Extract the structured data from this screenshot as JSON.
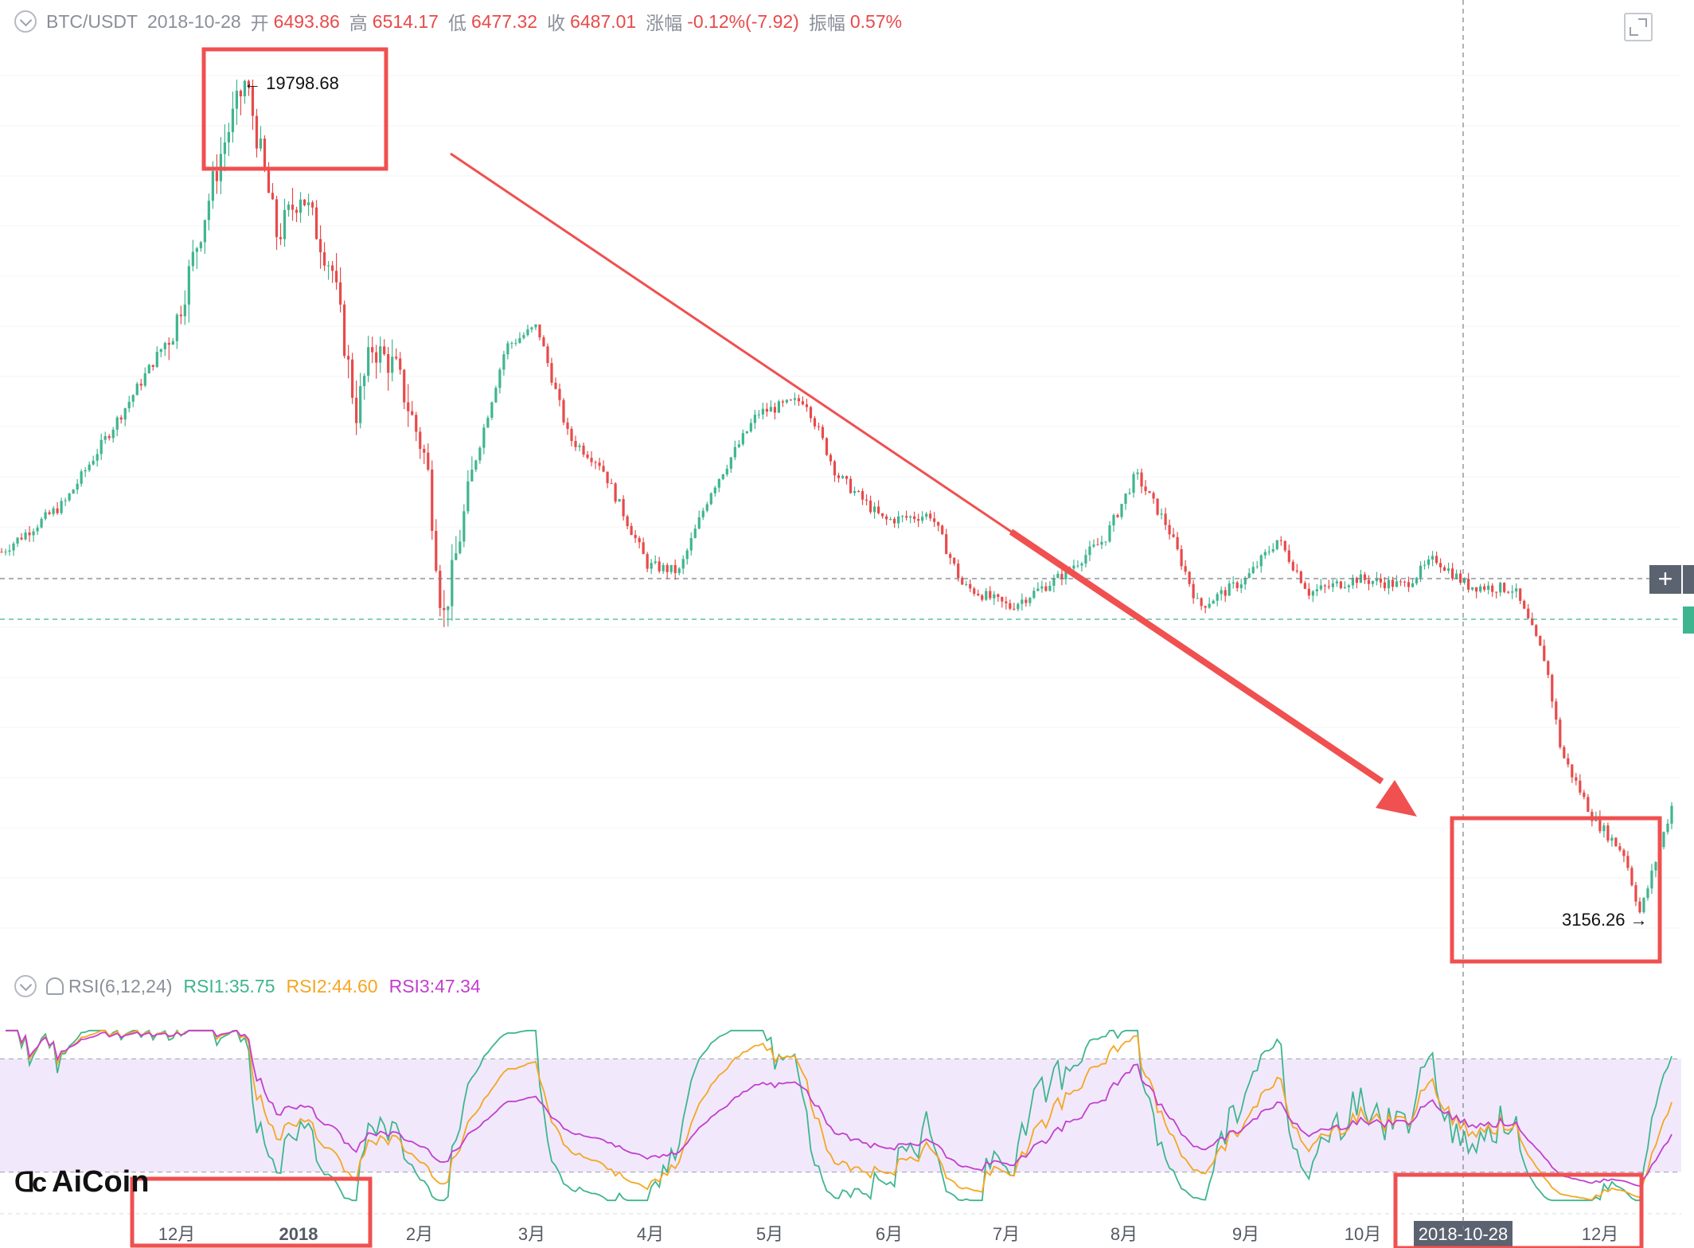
{
  "header": {
    "symbol": "BTC/USDT",
    "date": "2018-10-28",
    "open_label": "开",
    "open": "6493.86",
    "high_label": "高",
    "high": "6514.17",
    "low_label": "低",
    "low": "6477.32",
    "close_label": "收",
    "close": "6487.01",
    "change_label": "涨幅",
    "change": "-0.12%(-7.92)",
    "amplitude_label": "振幅",
    "amplitude": "0.57%"
  },
  "rsi_legend": {
    "name": "RSI(6,12,24)",
    "rsi1": "RSI1:35.75",
    "rsi2": "RSI2:44.60",
    "rsi3": "RSI3:47.34"
  },
  "logo_text": "AiCoin",
  "plus_label": "+",
  "colors": {
    "up": "#3fb58f",
    "down": "#e84a4a",
    "rsi1": "#3fb58f",
    "rsi2": "#f5a623",
    "rsi3": "#c23fd0",
    "band": "#f1e9fb",
    "annotation": "#f05050"
  },
  "chart_data": {
    "type": "candlestick",
    "x_axis_labels": [
      "12月",
      "2018",
      "2月",
      "3月",
      "4月",
      "5月",
      "6月",
      "7月",
      "8月",
      "9月",
      "10月",
      "2018-10-28",
      "12月"
    ],
    "crosshair_date": "2018-10-28",
    "high_marker": "19798.68",
    "low_marker": "3156.26",
    "price_trend": [
      {
        "t": 0,
        "price": 7000
      },
      {
        "t": 4,
        "price": 7800
      },
      {
        "t": 8,
        "price": 9700
      },
      {
        "t": 11,
        "price": 11500
      },
      {
        "t": 14,
        "price": 17000
      },
      {
        "t": 15.5,
        "price": 19798.68
      },
      {
        "t": 17.5,
        "price": 14000
      },
      {
        "t": 19,
        "price": 15500
      },
      {
        "t": 21,
        "price": 13000
      },
      {
        "t": 22.5,
        "price": 9500
      },
      {
        "t": 23.5,
        "price": 11000
      },
      {
        "t": 25,
        "price": 10500
      },
      {
        "t": 27,
        "price": 8500
      },
      {
        "t": 28,
        "price": 6000
      },
      {
        "t": 30,
        "price": 8500
      },
      {
        "t": 32,
        "price": 11000
      },
      {
        "t": 34,
        "price": 11500
      },
      {
        "t": 36,
        "price": 9000
      },
      {
        "t": 38,
        "price": 8500
      },
      {
        "t": 41,
        "price": 6800
      },
      {
        "t": 43,
        "price": 6700
      },
      {
        "t": 45,
        "price": 8000
      },
      {
        "t": 48,
        "price": 9500
      },
      {
        "t": 51,
        "price": 9800
      },
      {
        "t": 53,
        "price": 8300
      },
      {
        "t": 56,
        "price": 7500
      },
      {
        "t": 59,
        "price": 7600
      },
      {
        "t": 61,
        "price": 6500
      },
      {
        "t": 64,
        "price": 6200
      },
      {
        "t": 67,
        "price": 6600
      },
      {
        "t": 70,
        "price": 7200
      },
      {
        "t": 72,
        "price": 8300
      },
      {
        "t": 74,
        "price": 7400
      },
      {
        "t": 76,
        "price": 6200
      },
      {
        "t": 79,
        "price": 6600
      },
      {
        "t": 81,
        "price": 7200
      },
      {
        "t": 83,
        "price": 6400
      },
      {
        "t": 86,
        "price": 6600
      },
      {
        "t": 89,
        "price": 6500
      },
      {
        "t": 91,
        "price": 6900
      },
      {
        "t": 93,
        "price": 6500
      },
      {
        "t": 96,
        "price": 6450
      },
      {
        "t": 98,
        "price": 5500
      },
      {
        "t": 99,
        "price": 4500
      },
      {
        "t": 101,
        "price": 3900
      },
      {
        "t": 103,
        "price": 3600
      },
      {
        "t": 104,
        "price": 3156.26
      },
      {
        "t": 106,
        "price": 4000
      }
    ],
    "rsi_levels": [
      20,
      50,
      80
    ]
  }
}
